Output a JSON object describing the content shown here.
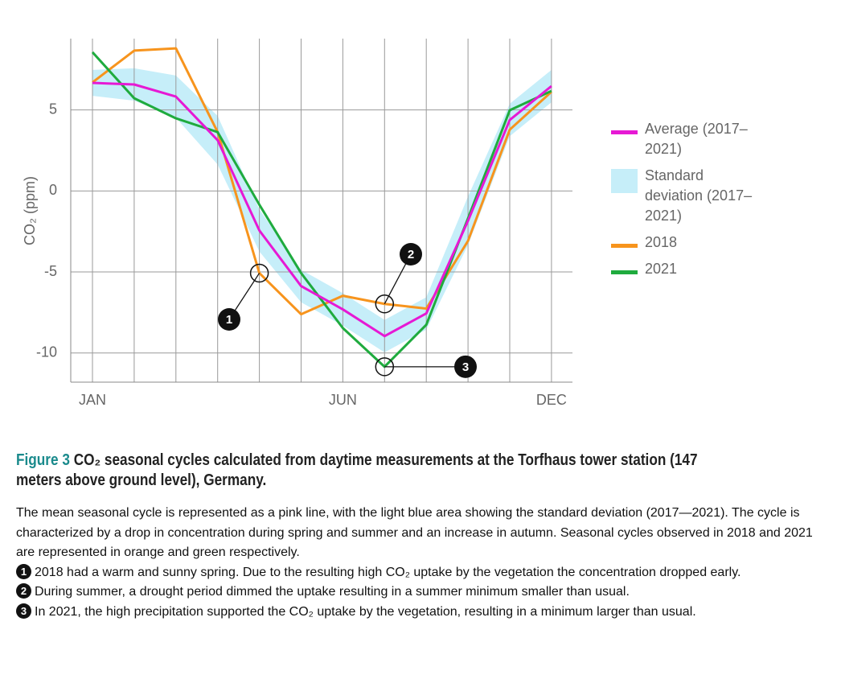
{
  "chart_data": {
    "type": "line",
    "y_label": "CO₂ (ppm)",
    "categories": [
      "JAN",
      null,
      null,
      null,
      null,
      null,
      "JUN",
      null,
      null,
      null,
      null,
      "DEC"
    ],
    "ylim": [
      -11.8,
      9.4
    ],
    "yticks": [
      -10,
      -5,
      0,
      5
    ],
    "grid": true,
    "legend": "right",
    "band": {
      "name": "Standard deviation (2017–2021)",
      "color": "#c6eef9",
      "values": [
        0.8,
        1.0,
        1.3,
        1.5,
        1.3,
        1.0,
        1.0,
        1.0,
        1.0,
        1.5,
        1.0,
        1.0
      ]
    },
    "series": [
      {
        "name": "Average (2017–2021)",
        "color": "#e619d4",
        "values": [
          6.67,
          6.57,
          5.82,
          3.13,
          -2.44,
          -5.87,
          -7.31,
          -8.96,
          -7.56,
          -1.84,
          4.38,
          6.47
        ]
      },
      {
        "name": "2018",
        "color": "#f7941d",
        "values": [
          6.7,
          8.66,
          8.8,
          3.63,
          -5.07,
          -7.61,
          -6.47,
          -6.97,
          -7.26,
          -3.08,
          3.78,
          6.12
        ]
      },
      {
        "name": "2021",
        "color": "#1fab3e",
        "values": [
          8.56,
          5.72,
          4.48,
          3.63,
          -0.85,
          -5.07,
          -8.46,
          -10.85,
          -8.26,
          -1.69,
          4.98,
          6.17
        ]
      }
    ],
    "annotations": [
      "1",
      "2",
      "3"
    ]
  },
  "caption": {
    "figure": "Figure 3",
    "title": "CO₂ seasonal cycles calculated from daytime measurements at the Torfhaus tower station (147 meters above ground level), Germany.",
    "body": "The mean seasonal cycle is represented as a pink line, with the light blue area showing the standard deviation (2017—2021). The cycle is characterized by a drop in concentration during spring and summer and an increase in autumn. Seasonal cycles observed in 2018 and 2021 are represented in orange and green respectively.",
    "notes": [
      {
        "number": "1",
        "text": "2018 had a warm and sunny spring. Due to the resulting high CO₂ uptake by the vegetation the concentration dropped early."
      },
      {
        "number": "2",
        "text": "During summer, a drought period dimmed the uptake resulting in a summer minimum smaller than usual."
      },
      {
        "number": "3",
        "text": "In 2021, the high precipitation supported the CO₂ uptake by the vegetation, resulting in a minimum larger than usual."
      }
    ]
  }
}
